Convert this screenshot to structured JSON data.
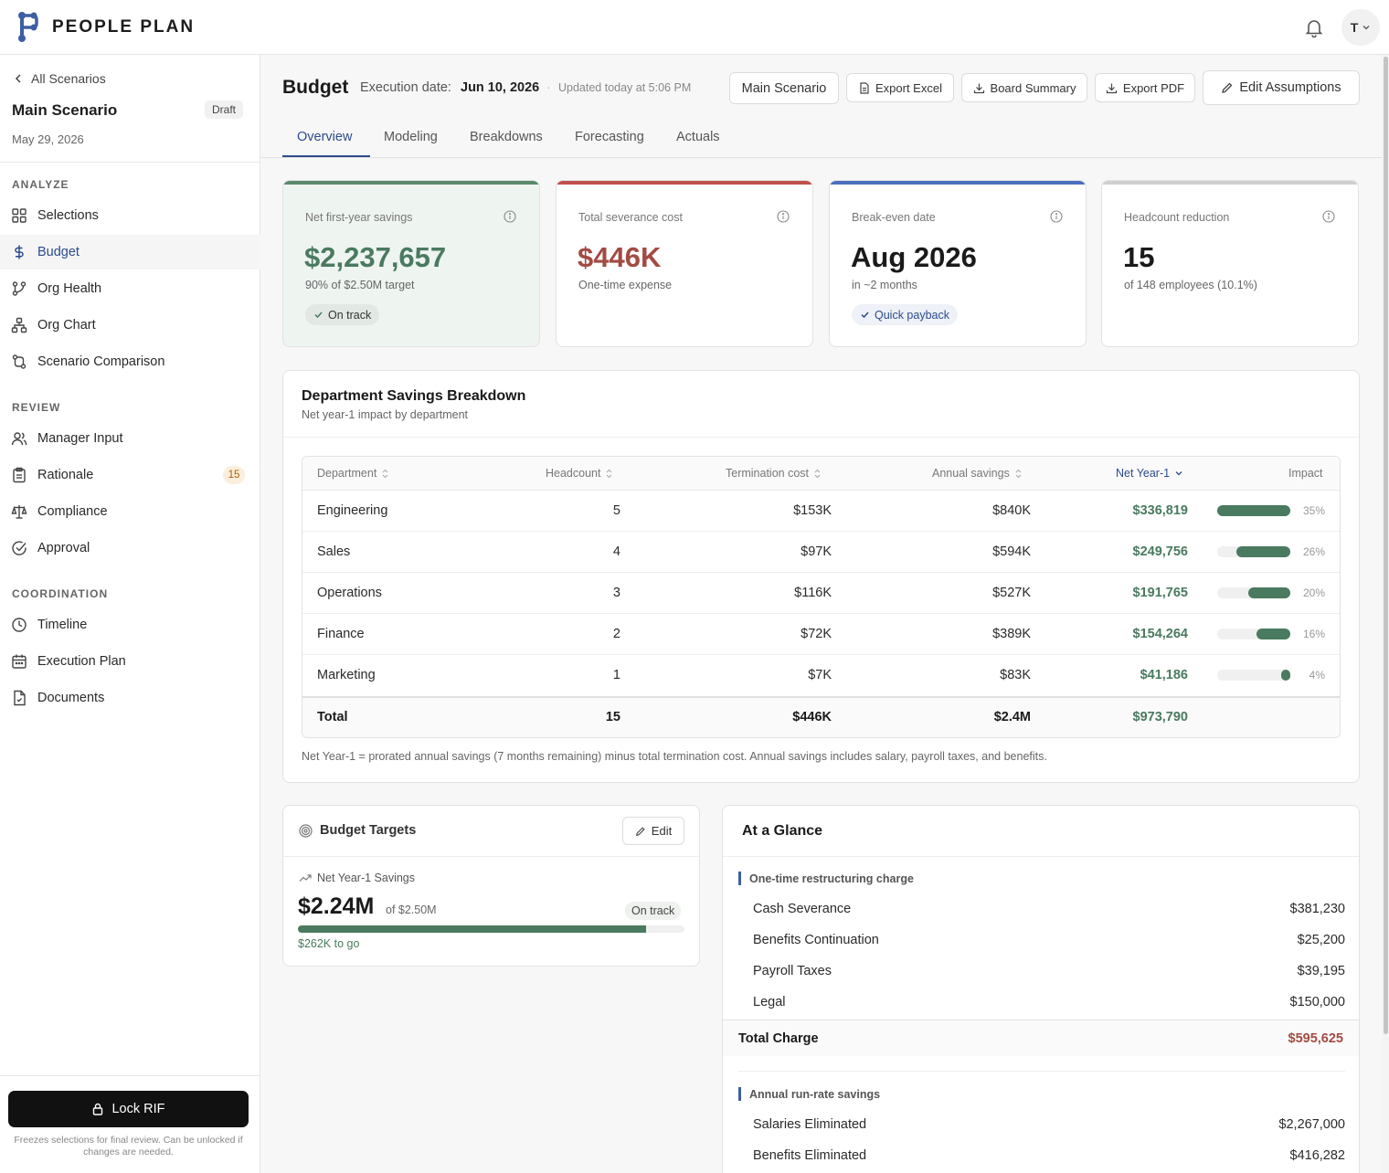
{
  "app": {
    "brand": "PEOPLE PLAN",
    "avatar_initial": "T"
  },
  "sidebar": {
    "back_label": "All Scenarios",
    "scenario_name": "Main Scenario",
    "status": "Draft",
    "date": "May 29, 2026",
    "sections": [
      {
        "title": "ANALYZE",
        "items": [
          {
            "label": "Selections",
            "icon": "grid-icon"
          },
          {
            "label": "Budget",
            "icon": "dollar-icon",
            "active": true
          },
          {
            "label": "Org Health",
            "icon": "branch-icon"
          },
          {
            "label": "Org Chart",
            "icon": "hierarchy-icon"
          },
          {
            "label": "Scenario Comparison",
            "icon": "compare-icon"
          }
        ]
      },
      {
        "title": "REVIEW",
        "items": [
          {
            "label": "Manager Input",
            "icon": "users-icon"
          },
          {
            "label": "Rationale",
            "icon": "clipboard-icon",
            "badge": "15"
          },
          {
            "label": "Compliance",
            "icon": "scale-icon"
          },
          {
            "label": "Approval",
            "icon": "check-circle-icon"
          }
        ]
      },
      {
        "title": "COORDINATION",
        "items": [
          {
            "label": "Timeline",
            "icon": "clock-icon"
          },
          {
            "label": "Execution Plan",
            "icon": "calendar-icon"
          },
          {
            "label": "Documents",
            "icon": "document-icon"
          }
        ]
      }
    ],
    "lock_button": "Lock RIF",
    "lock_note": "Freezes selections for final review. Can be unlocked if changes are needed."
  },
  "header": {
    "title": "Budget",
    "execution_label": "Execution date:",
    "execution_date": "Jun 10, 2026",
    "separator": "·",
    "updated": "Updated today at 5:06 PM",
    "buttons": {
      "scenario": "Main Scenario",
      "export_excel": "Export Excel",
      "board_summary": "Board Summary",
      "export_pdf": "Export PDF",
      "edit_assumptions": "Edit Assumptions"
    },
    "tabs": [
      "Overview",
      "Modeling",
      "Breakdowns",
      "Forecasting",
      "Actuals"
    ],
    "active_tab": "Overview"
  },
  "kpis": [
    {
      "label": "Net first-year savings",
      "value": "$2,237,657",
      "sub": "90% of $2.50M target",
      "pill": "On track",
      "accent": "#5a8a6a",
      "value_color": "#4a7a5f",
      "bg": "#eef4f0"
    },
    {
      "label": "Total severance cost",
      "value": "$446K",
      "sub": "One-time expense",
      "pill": null,
      "accent": "#c0504a",
      "value_color": "#a24b43",
      "bg": "#ffffff"
    },
    {
      "label": "Break-even date",
      "value": "Aug 2026",
      "sub": "in ~2 months",
      "pill": "Quick payback",
      "accent": "#4a6fbf",
      "value_color": "#1a1a1a",
      "bg": "#ffffff"
    },
    {
      "label": "Headcount reduction",
      "value": "15",
      "sub": "of 148 employees (10.1%)",
      "pill": null,
      "accent": "#d0d0d0",
      "value_color": "#1a1a1a",
      "bg": "#ffffff"
    }
  ],
  "department_breakdown": {
    "title": "Department Savings Breakdown",
    "subtitle": "Net year-1 impact by department",
    "columns": [
      "Department",
      "Headcount",
      "Termination cost",
      "Annual savings",
      "Net Year-1",
      "Impact"
    ],
    "rows": [
      {
        "department": "Engineering",
        "headcount": "5",
        "termination_cost": "$153K",
        "annual_savings": "$840K",
        "net_year1": "$336,819",
        "impact_pct": "35%",
        "impact": 0.35
      },
      {
        "department": "Sales",
        "headcount": "4",
        "termination_cost": "$97K",
        "annual_savings": "$594K",
        "net_year1": "$249,756",
        "impact_pct": "26%",
        "impact": 0.26
      },
      {
        "department": "Operations",
        "headcount": "3",
        "termination_cost": "$116K",
        "annual_savings": "$527K",
        "net_year1": "$191,765",
        "impact_pct": "20%",
        "impact": 0.2
      },
      {
        "department": "Finance",
        "headcount": "2",
        "termination_cost": "$72K",
        "annual_savings": "$389K",
        "net_year1": "$154,264",
        "impact_pct": "16%",
        "impact": 0.16
      },
      {
        "department": "Marketing",
        "headcount": "1",
        "termination_cost": "$7K",
        "annual_savings": "$83K",
        "net_year1": "$41,186",
        "impact_pct": "4%",
        "impact": 0.04
      }
    ],
    "total": {
      "label": "Total",
      "headcount": "15",
      "termination_cost": "$446K",
      "annual_savings": "$2.4M",
      "net_year1": "$973,790"
    },
    "footnote": "Net Year-1 = prorated annual savings (7 months remaining) minus total termination cost. Annual savings includes salary, payroll taxes, and benefits."
  },
  "budget_targets": {
    "title": "Budget Targets",
    "edit_label": "Edit",
    "metric_label": "Net Year-1 Savings",
    "value": "$2.24M",
    "of_label": "of $2.50M",
    "status": "On track",
    "progress": 0.9,
    "to_go": "$262K to go"
  },
  "at_a_glance": {
    "title": "At a Glance",
    "section1_title": "One-time restructuring charge",
    "section1_rows": [
      {
        "label": "Cash Severance",
        "value": "$381,230"
      },
      {
        "label": "Benefits Continuation",
        "value": "$25,200"
      },
      {
        "label": "Payroll Taxes",
        "value": "$39,195"
      },
      {
        "label": "Legal",
        "value": "$150,000"
      }
    ],
    "total_label": "Total Charge",
    "total_value": "$595,625",
    "section2_title": "Annual run-rate savings",
    "section2_rows": [
      {
        "label": "Salaries Eliminated",
        "value": "$2,267,000"
      },
      {
        "label": "Benefits Eliminated",
        "value": "$416,282"
      }
    ]
  },
  "colors": {
    "accent_blue": "#2d4b8a",
    "green": "#4a7a5f",
    "red": "#a24b43"
  }
}
